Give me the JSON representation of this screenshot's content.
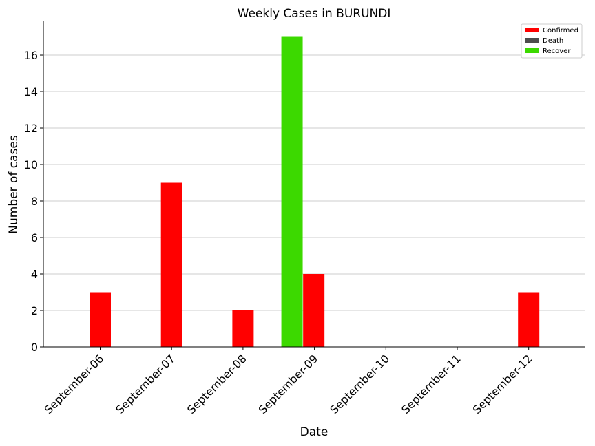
{
  "chart_data": {
    "type": "bar",
    "title": "Weekly Cases in BURUNDI",
    "xlabel": "Date",
    "ylabel": "Number of cases",
    "categories": [
      "September-06",
      "September-07",
      "September-08",
      "September-09",
      "September-10",
      "September-11",
      "September-12"
    ],
    "series": [
      {
        "name": "Confirmed",
        "color": "#ff0000",
        "values": [
          3,
          9,
          2,
          4,
          0,
          0,
          3
        ]
      },
      {
        "name": "Death",
        "color": "#4d4d4d",
        "values": [
          0,
          0,
          0,
          0,
          0,
          0,
          0
        ]
      },
      {
        "name": "Recover",
        "color": "#3cd900",
        "values": [
          0,
          0,
          0,
          17,
          0,
          0,
          0
        ]
      }
    ],
    "ylim": [
      0,
      17.85
    ],
    "yticks": [
      0,
      2,
      4,
      6,
      8,
      10,
      12,
      14,
      16
    ],
    "grid": "horizontal",
    "legend_position": "top-right"
  }
}
